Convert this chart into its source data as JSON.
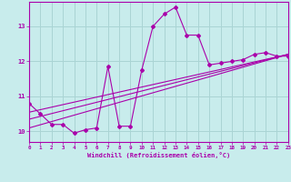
{
  "xlabel": "Windchill (Refroidissement éolien,°C)",
  "background_color": "#c8ecec",
  "grid_color": "#aad4d4",
  "line_color": "#aa00aa",
  "x_data": [
    0,
    1,
    2,
    3,
    4,
    5,
    6,
    7,
    8,
    9,
    10,
    11,
    12,
    13,
    14,
    15,
    16,
    17,
    18,
    19,
    20,
    21,
    22,
    23
  ],
  "y_main": [
    10.8,
    10.5,
    10.2,
    10.2,
    9.95,
    10.05,
    10.1,
    11.85,
    10.15,
    10.15,
    11.75,
    13.0,
    13.35,
    13.55,
    12.75,
    12.75,
    11.9,
    11.95,
    12.0,
    12.05,
    12.2,
    12.25,
    12.15,
    12.15
  ],
  "line1_start": 10.1,
  "line1_end": 12.2,
  "line2_start": 10.35,
  "line2_end": 12.2,
  "line3_start": 10.55,
  "line3_end": 12.2,
  "xlim": [
    0,
    23
  ],
  "ylim": [
    9.7,
    13.7
  ],
  "yticks": [
    10,
    11,
    12,
    13
  ],
  "xticks": [
    0,
    1,
    2,
    3,
    4,
    5,
    6,
    7,
    8,
    9,
    10,
    11,
    12,
    13,
    14,
    15,
    16,
    17,
    18,
    19,
    20,
    21,
    22,
    23
  ],
  "figwidth": 3.2,
  "figheight": 2.0,
  "dpi": 100
}
